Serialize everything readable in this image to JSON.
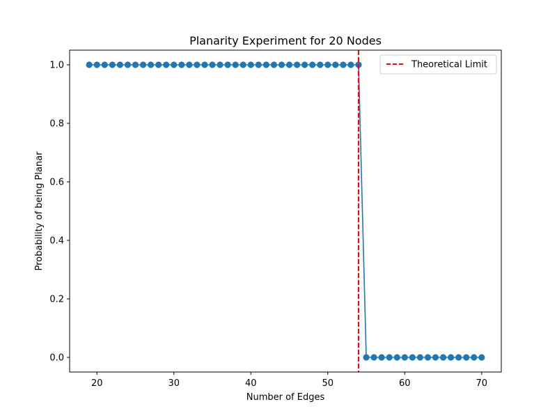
{
  "chart_data": {
    "type": "line",
    "title": "Planarity Experiment for 20 Nodes",
    "xlabel": "Number of Edges",
    "ylabel": "Probability of being Planar",
    "xlim": [
      16.45,
      72.55
    ],
    "ylim": [
      -0.05,
      1.05
    ],
    "xticks": [
      20,
      30,
      40,
      50,
      60,
      70
    ],
    "yticks": [
      "0.0",
      "0.2",
      "0.4",
      "0.6",
      "0.8",
      "1.0"
    ],
    "grid": false,
    "legend_position": "top-right",
    "series": [
      {
        "marker": "circle",
        "color": "#1f77b4",
        "x": [
          19,
          20,
          21,
          22,
          23,
          24,
          25,
          26,
          27,
          28,
          29,
          30,
          31,
          32,
          33,
          34,
          35,
          36,
          37,
          38,
          39,
          40,
          41,
          42,
          43,
          44,
          45,
          46,
          47,
          48,
          49,
          50,
          51,
          52,
          53,
          54,
          55,
          56,
          57,
          58,
          59,
          60,
          61,
          62,
          63,
          64,
          65,
          66,
          67,
          68,
          69,
          70
        ],
        "y": [
          1,
          1,
          1,
          1,
          1,
          1,
          1,
          1,
          1,
          1,
          1,
          1,
          1,
          1,
          1,
          1,
          1,
          1,
          1,
          1,
          1,
          1,
          1,
          1,
          1,
          1,
          1,
          1,
          1,
          1,
          1,
          1,
          1,
          1,
          1,
          1,
          0,
          0,
          0,
          0,
          0,
          0,
          0,
          0,
          0,
          0,
          0,
          0,
          0,
          0,
          0,
          0
        ]
      }
    ],
    "reference_lines": [
      {
        "name": "Theoretical Limit",
        "x": 54,
        "color": "#ff0000",
        "style": "dashed"
      }
    ]
  }
}
